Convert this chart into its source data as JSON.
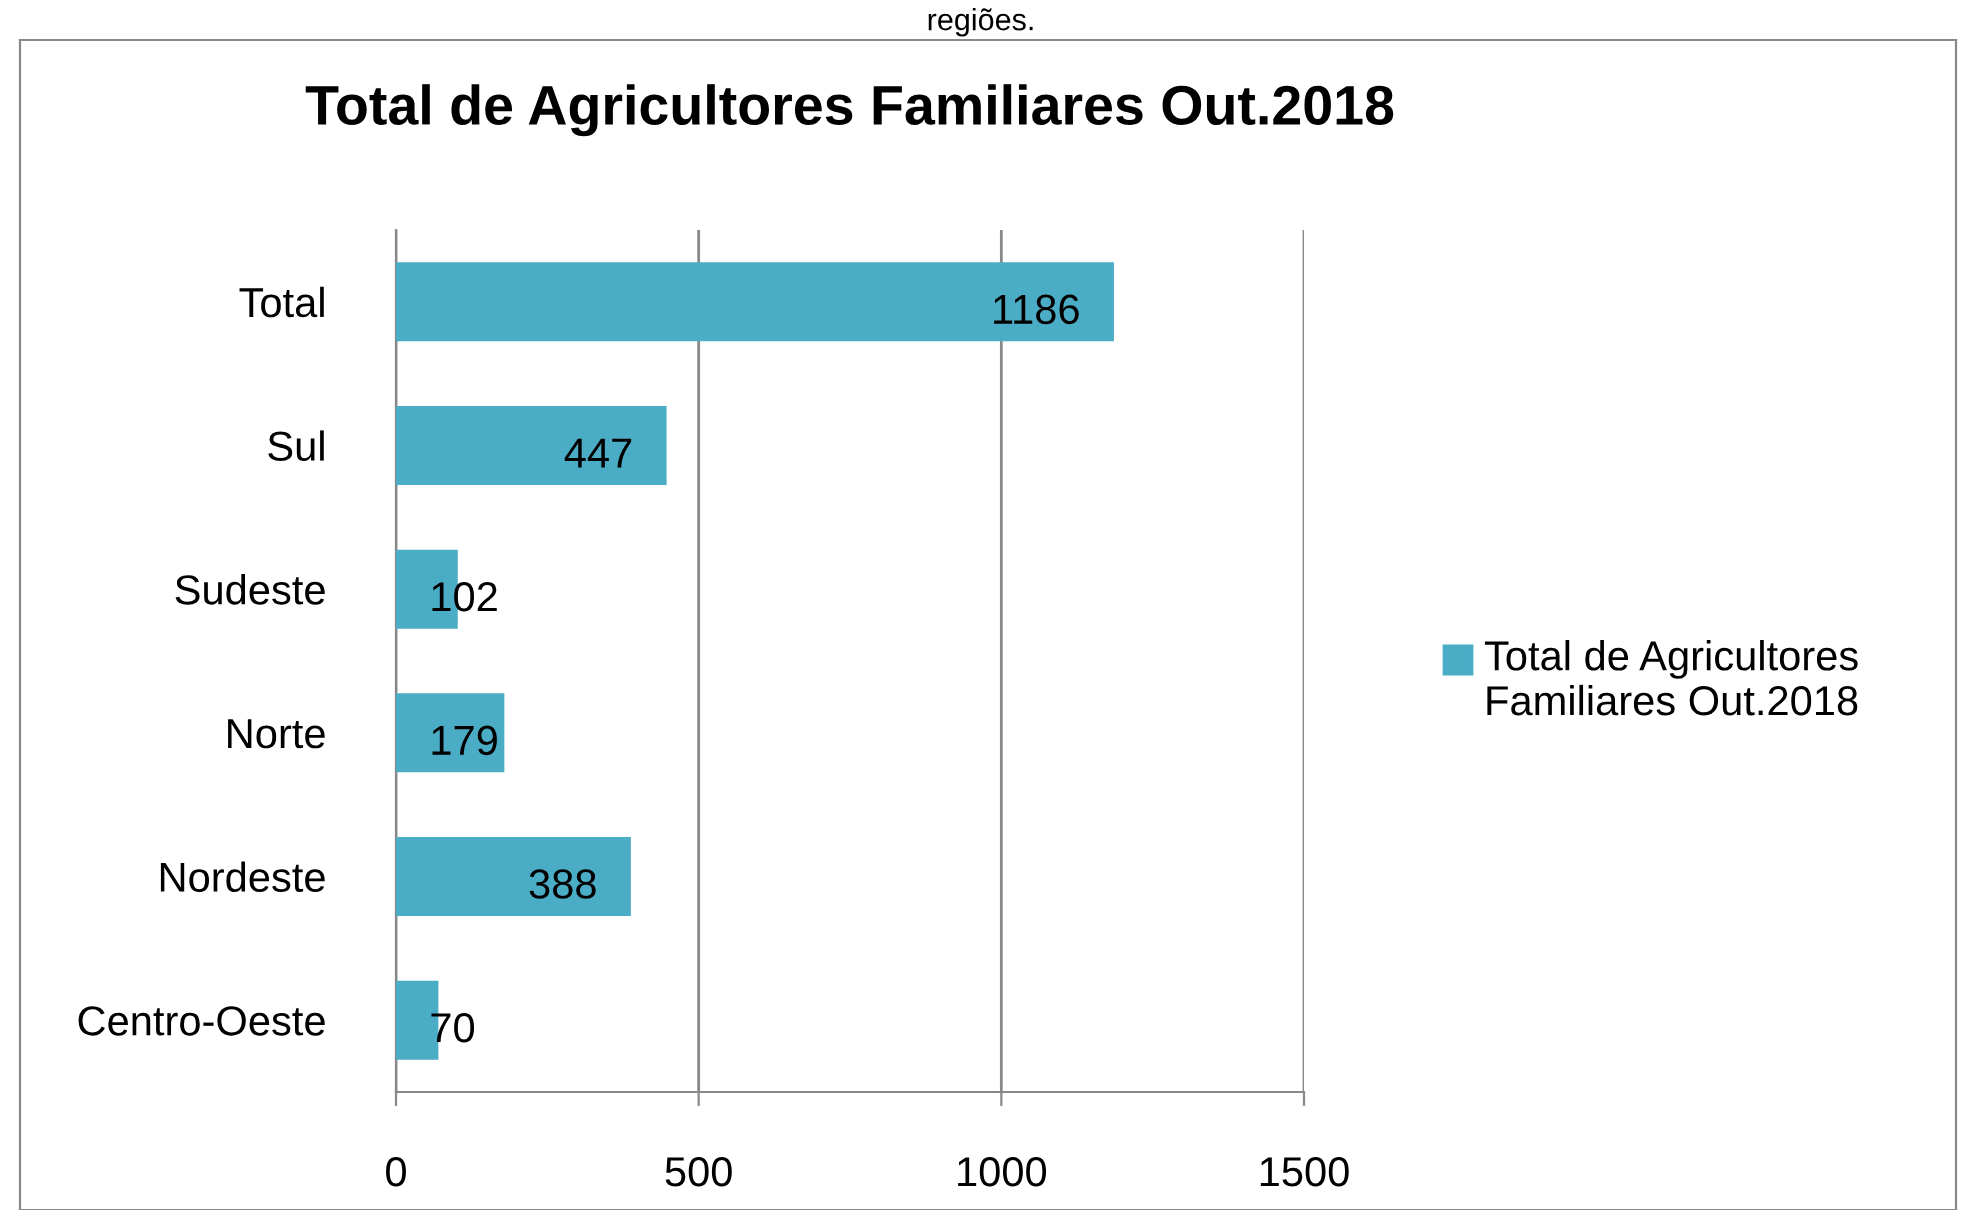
{
  "chart_data": {
    "type": "bar",
    "orientation": "horizontal",
    "title": "Total de Agricultores Familiares Out.2018",
    "categories": [
      "Total",
      "Sul",
      "Sudeste",
      "Norte",
      "Nordeste",
      "Centro-Oeste"
    ],
    "series": [
      {
        "name": "Total de Agricultores Familiares Out.2018",
        "color": "#4bacc6",
        "values": [
          1186,
          447,
          102,
          179,
          388,
          70
        ]
      }
    ],
    "xlim": [
      0,
      1500
    ],
    "xticks": [
      0,
      500,
      1000,
      1500
    ],
    "grid": "x",
    "legend": "right",
    "data_labels": true,
    "annotations": [
      "regiões."
    ]
  }
}
